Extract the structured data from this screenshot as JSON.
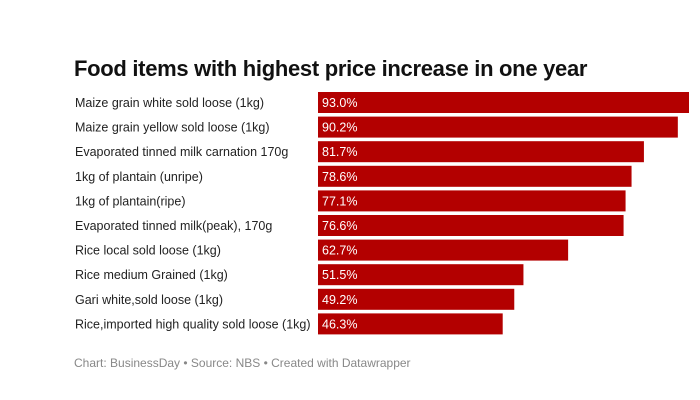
{
  "chart_data": {
    "type": "bar",
    "orientation": "horizontal",
    "title": "Food items with highest price increase in one year",
    "categories": [
      "Maize grain white sold loose (1kg)",
      "Maize grain yellow sold loose (1kg)",
      "Evaporated tinned milk carnation 170g",
      "1kg of plantain (unripe)",
      "1kg of plantain(ripe)",
      "Evaporated tinned milk(peak), 170g",
      "Rice local sold loose (1kg)",
      "Rice medium Grained (1kg)",
      "Gari white,sold loose (1kg)",
      "Rice,imported high quality sold loose (1kg)"
    ],
    "values": [
      93.0,
      90.2,
      81.7,
      78.6,
      77.1,
      76.6,
      62.7,
      51.5,
      49.2,
      46.3
    ],
    "value_labels": [
      "93.0%",
      "90.2%",
      "81.7%",
      "78.6%",
      "77.1%",
      "76.6%",
      "62.7%",
      "51.5%",
      "49.2%",
      "46.3%"
    ],
    "xlim": [
      0,
      93.0
    ],
    "bar_color": "#b30000",
    "value_label_color": "#ffffff",
    "grid": false,
    "legend": "none"
  },
  "footer": {
    "credit": "Chart: BusinessDay • Source: NBS • Created with Datawrapper"
  }
}
